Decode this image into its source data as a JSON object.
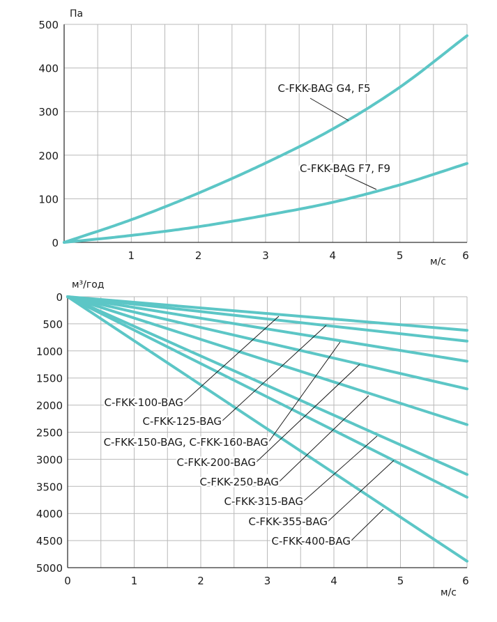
{
  "chart_data": [
    {
      "type": "line",
      "ylabel": "Па",
      "xlabel": "м/с",
      "xlim": [
        0,
        6
      ],
      "ylim": [
        0,
        500
      ],
      "x_ticks": [
        1,
        2,
        3,
        4,
        5,
        6
      ],
      "y_ticks": [
        0,
        100,
        200,
        300,
        400,
        500
      ],
      "grid": true,
      "line_color": "#5cc6c6",
      "series": [
        {
          "name": "C-FKK-BAG G4, F5",
          "x": [
            0,
            1,
            2,
            3,
            4,
            5,
            6
          ],
          "y": [
            0,
            52,
            113,
            182,
            260,
            356,
            474
          ]
        },
        {
          "name": "C-FKK-BAG  F7, F9",
          "x": [
            0,
            1,
            2,
            3,
            4,
            5,
            6
          ],
          "y": [
            0,
            16,
            36,
            62,
            92,
            132,
            181
          ]
        }
      ]
    },
    {
      "type": "line",
      "ylabel": "м³/год",
      "xlabel": "м/с",
      "xlim": [
        0,
        6
      ],
      "ylim": [
        0,
        5000
      ],
      "y_inverted": true,
      "x_ticks": [
        0,
        1,
        2,
        3,
        4,
        5,
        6
      ],
      "y_ticks": [
        0,
        500,
        1000,
        1500,
        2000,
        2500,
        3000,
        3500,
        4000,
        4500,
        5000
      ],
      "grid": true,
      "line_color": "#5cc6c6",
      "series": [
        {
          "name": "C-FKK-100-BAG",
          "x": [
            0,
            6
          ],
          "y": [
            0,
            620
          ]
        },
        {
          "name": "C-FKK-125-BAG",
          "x": [
            0,
            6
          ],
          "y": [
            0,
            820
          ]
        },
        {
          "name": "C-FKK-150-BAG, C-FKK-160-BAG",
          "x": [
            0,
            6
          ],
          "y": [
            0,
            1190
          ]
        },
        {
          "name": "C-FKK-200-BAG",
          "x": [
            0,
            6
          ],
          "y": [
            0,
            1700
          ]
        },
        {
          "name": "C-FKK-250-BAG",
          "x": [
            0,
            6
          ],
          "y": [
            0,
            2360
          ]
        },
        {
          "name": "C-FKK-315-BAG",
          "x": [
            0,
            6
          ],
          "y": [
            0,
            3280
          ]
        },
        {
          "name": "C-FKK-355-BAG",
          "x": [
            0,
            6
          ],
          "y": [
            0,
            3700
          ]
        },
        {
          "name": "C-FKK-400-BAG",
          "x": [
            0,
            6
          ],
          "y": [
            0,
            4880
          ]
        }
      ]
    }
  ]
}
